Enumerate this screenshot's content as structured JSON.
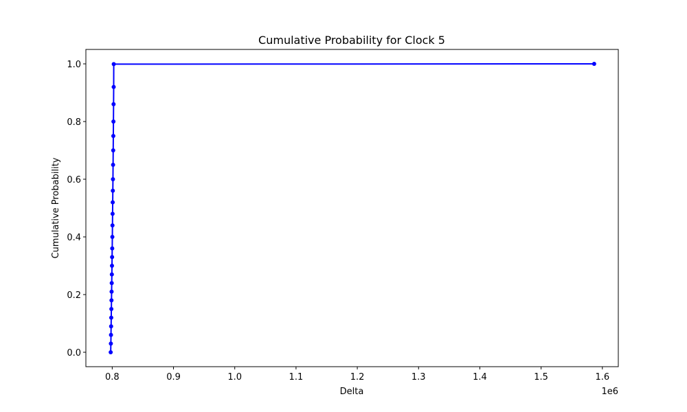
{
  "chart_data": {
    "type": "line",
    "title": "Cumulative Probability for Clock 5",
    "xlabel": "Delta",
    "ylabel": "Cumulative Probability",
    "x_offset_label": "1e6",
    "xlim": [
      0.757,
      1.626
    ],
    "ylim": [
      -0.05,
      1.05
    ],
    "x_ticks": [
      0.8,
      0.9,
      1.0,
      1.1,
      1.2,
      1.3,
      1.4,
      1.5,
      1.6
    ],
    "x_tick_labels": [
      "0.8",
      "0.9",
      "1.0",
      "1.1",
      "1.2",
      "1.3",
      "1.4",
      "1.5",
      "1.6"
    ],
    "y_ticks": [
      0.0,
      0.2,
      0.4,
      0.6,
      0.8,
      1.0
    ],
    "y_tick_labels": [
      "0.0",
      "0.2",
      "0.4",
      "0.6",
      "0.8",
      "1.0"
    ],
    "grid": false,
    "marker": "dot",
    "series": [
      {
        "color": "#0000ff",
        "x": [
          0.7975,
          0.7978,
          0.798,
          0.7982,
          0.7984,
          0.7986,
          0.7988,
          0.799,
          0.7992,
          0.7994,
          0.7996,
          0.7998,
          0.8,
          0.8002,
          0.8004,
          0.8006,
          0.8008,
          0.801,
          0.8012,
          0.8014,
          0.8016,
          0.8018,
          0.802,
          0.8022,
          0.8024,
          0.8025,
          1.5866
        ],
        "y": [
          0.0,
          0.03,
          0.06,
          0.09,
          0.12,
          0.15,
          0.18,
          0.21,
          0.24,
          0.27,
          0.3,
          0.33,
          0.36,
          0.4,
          0.44,
          0.48,
          0.52,
          0.56,
          0.6,
          0.65,
          0.7,
          0.75,
          0.8,
          0.86,
          0.92,
          0.999,
          1.0
        ]
      }
    ]
  }
}
